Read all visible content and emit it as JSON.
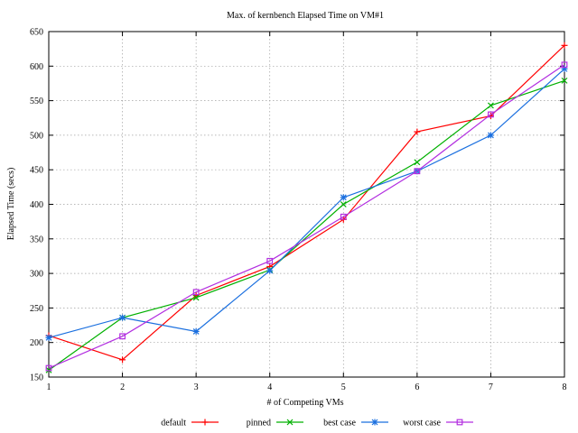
{
  "chart_data": {
    "type": "line",
    "title": "Max. of kernbench Elapsed Time on VM#1",
    "xlabel": "# of Competing VMs",
    "ylabel": "Elapsed Time (secs)",
    "x": [
      1,
      2,
      3,
      4,
      5,
      6,
      7,
      8
    ],
    "xlim": [
      1,
      8
    ],
    "ylim": [
      150,
      650
    ],
    "xticks": [
      1,
      2,
      3,
      4,
      5,
      6,
      7,
      8
    ],
    "yticks": [
      150,
      200,
      250,
      300,
      350,
      400,
      450,
      500,
      550,
      600,
      650
    ],
    "grid": true,
    "legend_position": "bottom",
    "series": [
      {
        "name": "default",
        "color": "#ff0000",
        "marker": "plus",
        "values": [
          210,
          175,
          268,
          310,
          378,
          505,
          528,
          630
        ]
      },
      {
        "name": "pinned",
        "color": "#00b000",
        "marker": "cross",
        "values": [
          160,
          236,
          265,
          305,
          400,
          461,
          543,
          579
        ]
      },
      {
        "name": "best case",
        "color": "#1a6fdf",
        "marker": "star",
        "values": [
          207,
          236,
          216,
          304,
          410,
          448,
          500,
          596
        ]
      },
      {
        "name": "worst case",
        "color": "#b22ee0",
        "marker": "square",
        "values": [
          163,
          209,
          273,
          318,
          382,
          448,
          530,
          602
        ]
      }
    ]
  }
}
